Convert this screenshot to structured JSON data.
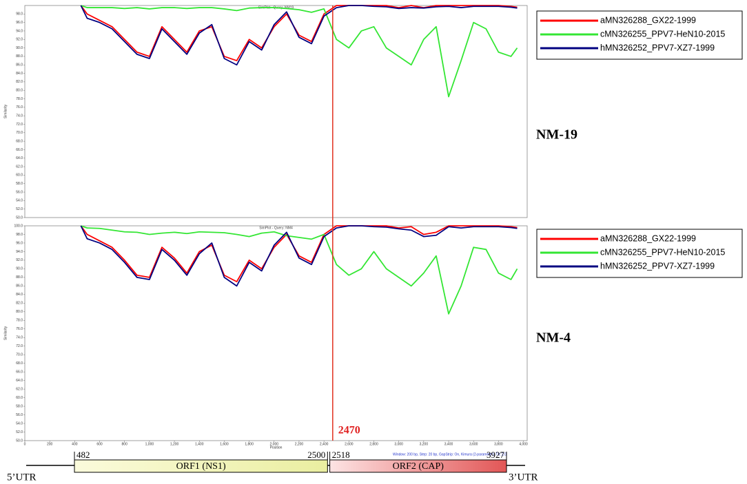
{
  "chart_data": [
    {
      "type": "line",
      "title": "SimPlot - Query: NM19",
      "y_label": "Similarity",
      "panel_label": "NM-19",
      "xlim": [
        0,
        4030
      ],
      "ylim": [
        50,
        100
      ],
      "yticks": [
        {
          "value": 50,
          "label": "50.0"
        },
        {
          "value": 52,
          "label": "52.0"
        },
        {
          "value": 54,
          "label": "54.0"
        },
        {
          "value": 56,
          "label": "56.0"
        },
        {
          "value": 58,
          "label": "58.0"
        },
        {
          "value": 60,
          "label": "60.0"
        },
        {
          "value": 62,
          "label": "62.0"
        },
        {
          "value": 64,
          "label": "64.0"
        },
        {
          "value": 66,
          "label": "66.0"
        },
        {
          "value": 68,
          "label": "68.0"
        },
        {
          "value": 70,
          "label": "70.0"
        },
        {
          "value": 72,
          "label": "72.0"
        },
        {
          "value": 74,
          "label": "74.0"
        },
        {
          "value": 76,
          "label": "76.0"
        },
        {
          "value": 78,
          "label": "78.0"
        },
        {
          "value": 80,
          "label": "80.0"
        },
        {
          "value": 82,
          "label": "82.0"
        },
        {
          "value": 84,
          "label": "84.0"
        },
        {
          "value": 86,
          "label": "86.0"
        },
        {
          "value": 88,
          "label": "88.0"
        },
        {
          "value": 90,
          "label": "90.0"
        },
        {
          "value": 92,
          "label": "92.0"
        },
        {
          "value": 94,
          "label": "94.0"
        },
        {
          "value": 96,
          "label": "96.0"
        },
        {
          "value": 98,
          "label": "98.0"
        }
      ],
      "x": [
        450,
        500,
        600,
        700,
        800,
        900,
        1000,
        1100,
        1200,
        1300,
        1400,
        1500,
        1600,
        1700,
        1800,
        1900,
        2000,
        2100,
        2200,
        2300,
        2400,
        2500,
        2600,
        2700,
        2800,
        2900,
        3000,
        3100,
        3200,
        3300,
        3400,
        3500,
        3600,
        3700,
        3800,
        3900,
        3950
      ],
      "series": [
        {
          "name": "aMN326288_GX22-1999",
          "color": "#ff0000",
          "values": [
            100,
            98,
            96.5,
            95,
            92,
            89,
            88,
            95,
            92,
            89,
            94,
            95,
            88,
            87,
            92,
            90,
            95,
            98,
            93,
            91.5,
            98,
            100,
            100,
            100,
            100,
            100,
            99.5,
            100,
            99.5,
            100,
            100,
            100,
            100,
            100,
            100,
            99.8,
            99.6
          ]
        },
        {
          "name": "cMN326255_PPV7-HeN10-2015",
          "color": "#33e633",
          "values": [
            100,
            99.5,
            99.5,
            99.5,
            99.3,
            99.5,
            99.2,
            99.5,
            99.5,
            99.3,
            99.5,
            99.5,
            99.2,
            98.8,
            99.4,
            99.5,
            99.5,
            99.3,
            99,
            98.4,
            99.2,
            92,
            90,
            94,
            95,
            90,
            88,
            86,
            92,
            95,
            78.5,
            87,
            96,
            94.5,
            89,
            88,
            90
          ]
        },
        {
          "name": "hMN326252_PPV7-XZ7-1999",
          "color": "#000080",
          "values": [
            100,
            97,
            96,
            94.5,
            91.5,
            88.5,
            87.5,
            94.5,
            91.5,
            88.5,
            93.5,
            95.5,
            87.5,
            86,
            91.5,
            89.5,
            95.5,
            98.5,
            92.5,
            91,
            97.5,
            99.5,
            100,
            100,
            99.8,
            99.7,
            99.3,
            99.5,
            99.4,
            99.7,
            99.8,
            99.5,
            99.8,
            99.8,
            99.8,
            99.6,
            99.4
          ]
        }
      ]
    },
    {
      "type": "line",
      "title": "SimPlot - Query: NM4",
      "x_label": "Position",
      "y_label": "Similarity",
      "panel_label": "NM-4",
      "note": "Window: 200 bp, Step: 20 bp, GapStrip: On, Kimura (2-parameter), T/t: 2.0",
      "xlim": [
        0,
        4030
      ],
      "ylim": [
        50,
        100
      ],
      "xticks": [
        0,
        200,
        400,
        600,
        800,
        {
          "value": 1000,
          "label": "1,000"
        },
        {
          "value": 1200,
          "label": "1,200"
        },
        {
          "value": 1400,
          "label": "1,400"
        },
        {
          "value": 1600,
          "label": "1,600"
        },
        {
          "value": 1800,
          "label": "1,800"
        },
        {
          "value": 2000,
          "label": "2,000"
        },
        {
          "value": 2200,
          "label": "2,200"
        },
        {
          "value": 2400,
          "label": "2,400"
        },
        {
          "value": 2600,
          "label": "2,600"
        },
        {
          "value": 2800,
          "label": "2,800"
        },
        {
          "value": 3000,
          "label": "3,000"
        },
        {
          "value": 3200,
          "label": "3,200"
        },
        {
          "value": 3400,
          "label": "3,400"
        },
        {
          "value": 3600,
          "label": "3,600"
        },
        {
          "value": 3800,
          "label": "3,800"
        },
        {
          "value": 4000,
          "label": "4,000"
        }
      ],
      "yticks": [
        {
          "value": 50,
          "label": "50.0"
        },
        {
          "value": 52,
          "label": "52.0"
        },
        {
          "value": 54,
          "label": "54.0"
        },
        {
          "value": 56,
          "label": "56.0"
        },
        {
          "value": 58,
          "label": "58.0"
        },
        {
          "value": 60,
          "label": "60.0"
        },
        {
          "value": 62,
          "label": "62.0"
        },
        {
          "value": 64,
          "label": "64.0"
        },
        {
          "value": 66,
          "label": "66.0"
        },
        {
          "value": 68,
          "label": "68.0"
        },
        {
          "value": 70,
          "label": "70.0"
        },
        {
          "value": 72,
          "label": "72.0"
        },
        {
          "value": 74,
          "label": "74.0"
        },
        {
          "value": 76,
          "label": "76.0"
        },
        {
          "value": 78,
          "label": "78.0"
        },
        {
          "value": 80,
          "label": "80.0"
        },
        {
          "value": 82,
          "label": "82.0"
        },
        {
          "value": 84,
          "label": "84.0"
        },
        {
          "value": 86,
          "label": "86.0"
        },
        {
          "value": 88,
          "label": "88.0"
        },
        {
          "value": 90,
          "label": "90.0"
        },
        {
          "value": 92,
          "label": "92.0"
        },
        {
          "value": 94,
          "label": "94.0"
        },
        {
          "value": 96,
          "label": "96.0"
        },
        {
          "value": 98,
          "label": "98.0"
        },
        {
          "value": 100,
          "label": "100.0"
        }
      ],
      "x": [
        450,
        500,
        600,
        700,
        800,
        900,
        1000,
        1100,
        1200,
        1300,
        1400,
        1500,
        1600,
        1700,
        1800,
        1900,
        2000,
        2100,
        2200,
        2300,
        2400,
        2500,
        2600,
        2700,
        2800,
        2900,
        3000,
        3100,
        3200,
        3300,
        3400,
        3500,
        3600,
        3700,
        3800,
        3900,
        3950
      ],
      "series": [
        {
          "name": "aMN326288_GX22-1999",
          "color": "#ff0000",
          "values": [
            100,
            98,
            96.5,
            95,
            92,
            88.5,
            88,
            95,
            92.5,
            89,
            94,
            95.5,
            88.5,
            87,
            92,
            90,
            95,
            98,
            93,
            91.5,
            98,
            100,
            100,
            100,
            100,
            100,
            99.5,
            99.8,
            98,
            98.5,
            100,
            100,
            100,
            100,
            100,
            99.8,
            99.6
          ]
        },
        {
          "name": "cMN326255_PPV7-HeN10-2015",
          "color": "#33e633",
          "values": [
            100,
            99.5,
            99.4,
            99,
            98.6,
            98.5,
            98,
            98.3,
            98.5,
            98.2,
            98.6,
            98.5,
            98.4,
            98,
            97.5,
            98.3,
            98.6,
            97.7,
            97.3,
            96.9,
            98,
            91,
            88.5,
            90,
            94,
            90,
            88,
            86,
            89,
            93,
            79.5,
            86,
            95,
            94.5,
            89,
            87.5,
            90
          ]
        },
        {
          "name": "hMN326252_PPV7-XZ7-1999",
          "color": "#000080",
          "values": [
            100,
            97,
            96,
            94.5,
            91.5,
            88,
            87.5,
            94.5,
            92,
            88.5,
            93.5,
            96,
            88,
            86,
            91.5,
            89.5,
            95.5,
            98.5,
            92.5,
            91,
            97.5,
            99.5,
            100,
            100,
            99.8,
            99.7,
            99.3,
            99,
            97.5,
            97.8,
            99.8,
            99.5,
            99.8,
            99.8,
            99.8,
            99.6,
            99.4
          ]
        }
      ]
    }
  ],
  "breakpoint": 2470,
  "genome_map": {
    "left_label": "5’UTR",
    "right_label": "3’UTR",
    "orfs": [
      {
        "name": "ORF1 (NS1)",
        "start": 482,
        "end": 2500
      },
      {
        "name": "ORF2 (CAP)",
        "start": 2518,
        "end": 3927
      }
    ]
  }
}
